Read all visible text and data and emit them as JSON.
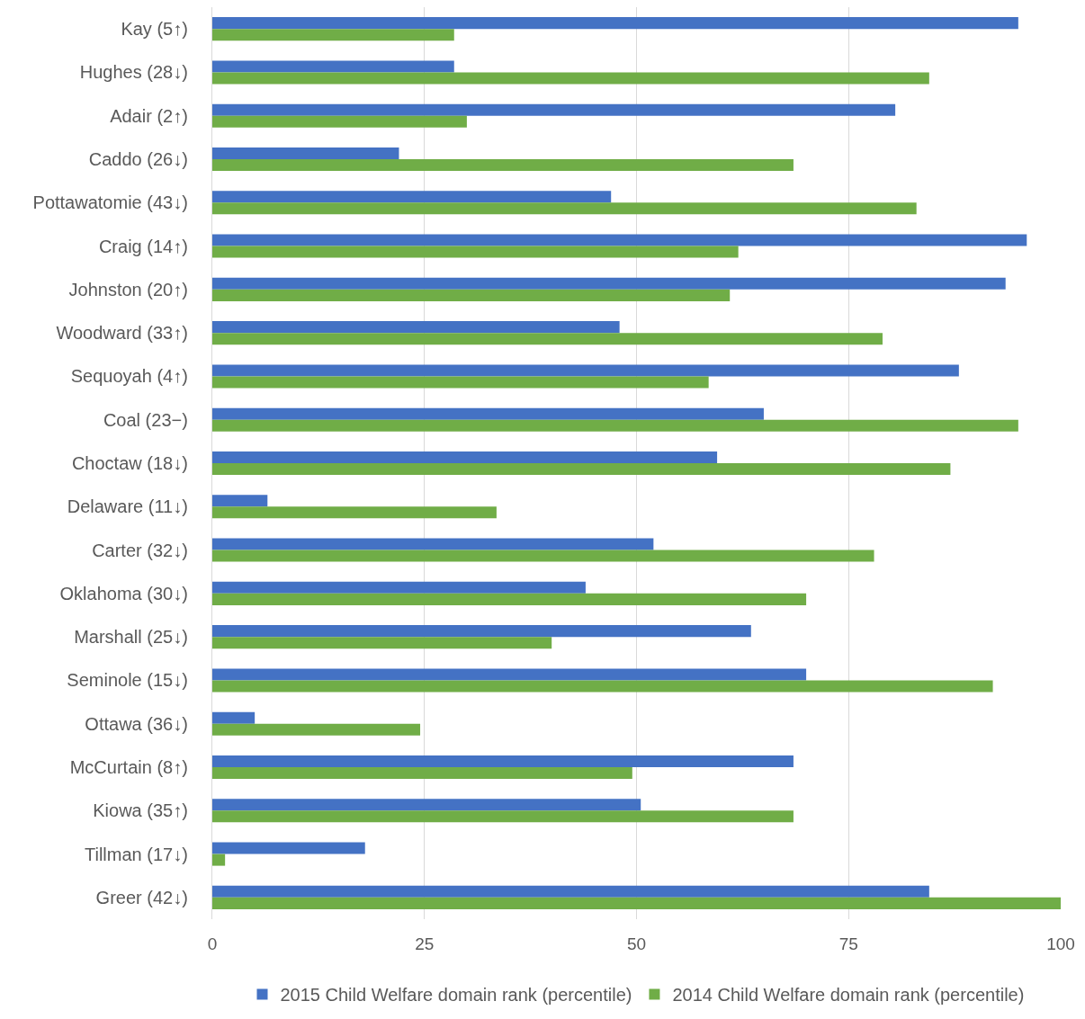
{
  "chart_data": {
    "type": "bar",
    "orientation": "horizontal",
    "categories": [
      "Kay (5↑)",
      "Hughes (28↓)",
      "Adair (2↑)",
      "Caddo (26↓)",
      "Pottawatomie (43↓)",
      "Craig (14↑)",
      "Johnston (20↑)",
      "Woodward (33↑)",
      "Sequoyah (4↑)",
      "Coal (23−)",
      "Choctaw (18↓)",
      "Delaware (11↓)",
      "Carter (32↓)",
      "Oklahoma (30↓)",
      "Marshall (25↓)",
      "Seminole (15↓)",
      "Ottawa (36↓)",
      "McCurtain (8↑)",
      "Kiowa (35↑)",
      "Tillman (17↓)",
      "Greer (42↓)"
    ],
    "series": [
      {
        "name": "2015 Child Welfare domain rank (percentile)",
        "color": "#4472c4",
        "values": [
          95,
          28.5,
          80.5,
          22,
          47,
          96,
          93.5,
          48,
          88,
          65,
          59.5,
          6.5,
          52,
          44,
          63.5,
          70,
          5,
          68.5,
          50.5,
          18,
          84.5
        ]
      },
      {
        "name": "2014 Child Welfare domain rank (percentile)",
        "color": "#70ad47",
        "values": [
          28.5,
          84.5,
          30,
          68.5,
          83,
          62,
          61,
          79,
          58.5,
          95,
          87,
          33.5,
          78,
          70,
          40,
          92,
          24.5,
          49.5,
          68.5,
          1.5,
          100
        ]
      }
    ],
    "xlim": [
      0,
      100
    ],
    "xticks": [
      0,
      25,
      50,
      75,
      100
    ],
    "grid": "x",
    "legend": "bottom"
  }
}
